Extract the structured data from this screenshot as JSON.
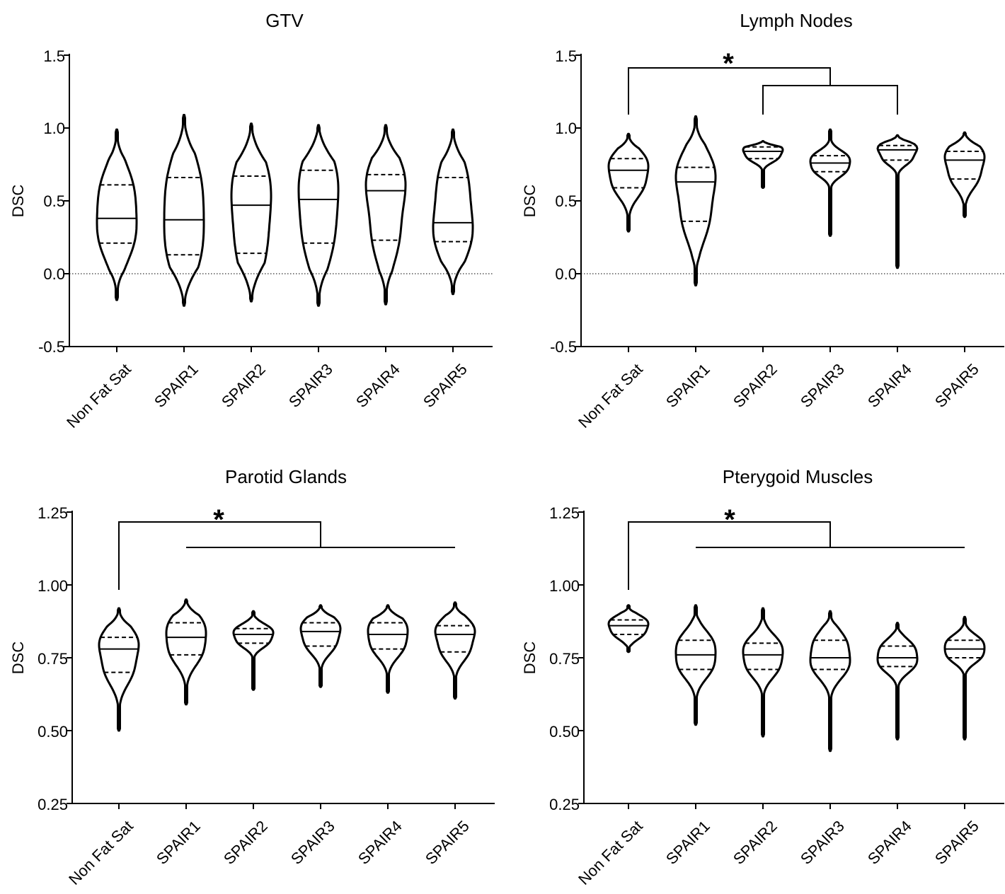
{
  "chart_data": [
    {
      "type": "violin",
      "title": "GTV",
      "ylabel": "DSC",
      "xlabel": "",
      "ylim": [
        -0.5,
        1.5
      ],
      "yticks": [
        "1.5",
        "1.0",
        "0.5",
        "0.0",
        "-0.5"
      ],
      "ytick_values": [
        1.5,
        1.0,
        0.5,
        0.0,
        -0.5
      ],
      "zero_reference_line": true,
      "categories": [
        "Non Fat Sat",
        "SPAIR1",
        "SPAIR2",
        "SPAIR3",
        "SPAIR4",
        "SPAIR5"
      ],
      "median": [
        0.38,
        0.37,
        0.47,
        0.51,
        0.57,
        0.35
      ],
      "q1": [
        0.21,
        0.13,
        0.14,
        0.21,
        0.23,
        0.22
      ],
      "q3": [
        0.61,
        0.66,
        0.67,
        0.71,
        0.68,
        0.66
      ],
      "min": [
        -0.18,
        -0.22,
        -0.19,
        -0.22,
        -0.21,
        -0.14
      ],
      "max": [
        0.99,
        1.09,
        1.03,
        1.02,
        1.02,
        0.99
      ],
      "significance": []
    },
    {
      "type": "violin",
      "title": "Lymph Nodes",
      "ylabel": "DSC",
      "xlabel": "",
      "ylim": [
        -0.5,
        1.5
      ],
      "yticks": [
        "1.5",
        "1.0",
        "0.5",
        "0.0",
        "-0.5"
      ],
      "ytick_values": [
        1.5,
        1.0,
        0.5,
        0.0,
        -0.5
      ],
      "zero_reference_line": true,
      "categories": [
        "Non Fat Sat",
        "SPAIR1",
        "SPAIR2",
        "SPAIR3",
        "SPAIR4",
        "SPAIR5"
      ],
      "median": [
        0.71,
        0.63,
        0.84,
        0.76,
        0.85,
        0.78
      ],
      "q1": [
        0.59,
        0.36,
        0.79,
        0.7,
        0.78,
        0.65
      ],
      "q3": [
        0.79,
        0.73,
        0.87,
        0.81,
        0.88,
        0.84
      ],
      "min": [
        0.29,
        -0.08,
        0.59,
        0.26,
        0.04,
        0.39
      ],
      "max": [
        0.96,
        1.08,
        0.91,
        0.99,
        0.95,
        0.97
      ],
      "significance": [
        "*"
      ]
    },
    {
      "type": "violin",
      "title": "Parotid Glands",
      "ylabel": "DSC",
      "xlabel": "",
      "ylim": [
        0.25,
        1.25
      ],
      "yticks": [
        "1.25",
        "1.00",
        "0.75",
        "0.50",
        "0.25"
      ],
      "ytick_values": [
        1.25,
        1.0,
        0.75,
        0.5,
        0.25
      ],
      "zero_reference_line": false,
      "categories": [
        "Non Fat Sat",
        "SPAIR1",
        "SPAIR2",
        "SPAIR3",
        "SPAIR4",
        "SPAIR5"
      ],
      "median": [
        0.78,
        0.82,
        0.83,
        0.84,
        0.83,
        0.83
      ],
      "q1": [
        0.7,
        0.76,
        0.8,
        0.79,
        0.78,
        0.77
      ],
      "q3": [
        0.82,
        0.87,
        0.85,
        0.87,
        0.87,
        0.86
      ],
      "min": [
        0.5,
        0.59,
        0.64,
        0.65,
        0.63,
        0.61
      ],
      "max": [
        0.92,
        0.95,
        0.91,
        0.93,
        0.93,
        0.94
      ],
      "significance": [
        "*"
      ]
    },
    {
      "type": "violin",
      "title": "Pterygoid Muscles",
      "ylabel": "DSC",
      "xlabel": "",
      "ylim": [
        0.25,
        1.25
      ],
      "yticks": [
        "1.25",
        "1.00",
        "0.75",
        "0.50",
        "0.25"
      ],
      "ytick_values": [
        1.25,
        1.0,
        0.75,
        0.5,
        0.25
      ],
      "zero_reference_line": false,
      "categories": [
        "Non Fat Sat",
        "SPAIR1",
        "SPAIR2",
        "SPAIR3",
        "SPAIR4",
        "SPAIR5"
      ],
      "median": [
        0.86,
        0.76,
        0.76,
        0.75,
        0.75,
        0.78
      ],
      "q1": [
        0.83,
        0.71,
        0.71,
        0.71,
        0.72,
        0.75
      ],
      "q3": [
        0.88,
        0.81,
        0.8,
        0.81,
        0.79,
        0.81
      ],
      "min": [
        0.77,
        0.52,
        0.48,
        0.43,
        0.47,
        0.47
      ],
      "max": [
        0.93,
        0.93,
        0.92,
        0.91,
        0.87,
        0.89
      ],
      "significance": [
        "*"
      ]
    }
  ]
}
